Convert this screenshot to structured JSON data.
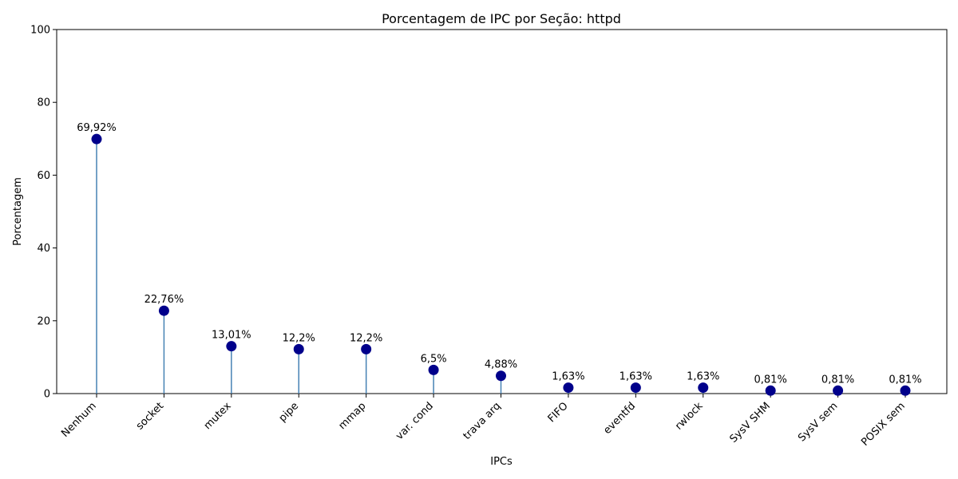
{
  "chart_data": {
    "type": "lollipop",
    "title": "Porcentagem de IPC por Seção: httpd",
    "xlabel": "IPCs",
    "ylabel": "Porcentagem",
    "ylim": [
      0,
      100
    ],
    "yticks": [
      "0",
      "20",
      "40",
      "60",
      "80",
      "100"
    ],
    "categories": [
      "Nenhum",
      "socket",
      "mutex",
      "pipe",
      "mmap",
      "var. cond",
      "trava arq",
      "FIFO",
      "eventfd",
      "rwlock",
      "SysV SHM",
      "SysV sem",
      "POSIX sem"
    ],
    "values": [
      69.92,
      22.76,
      13.01,
      12.2,
      12.2,
      6.5,
      4.88,
      1.63,
      1.63,
      1.63,
      0.81,
      0.81,
      0.81
    ],
    "value_labels": [
      "69,92%",
      "22,76%",
      "13,01%",
      "12,2%",
      "12,2%",
      "6,5%",
      "4,88%",
      "1,63%",
      "1,63%",
      "1,63%",
      "0,81%",
      "0,81%",
      "0,81%"
    ],
    "grid": false,
    "colors": {
      "marker": "#00008b",
      "stem": "#4682b4"
    }
  }
}
